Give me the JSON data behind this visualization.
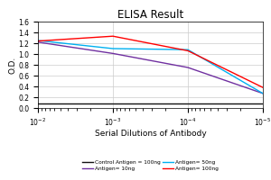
{
  "title": "ELISA Result",
  "xlabel": "Serial Dilutions of Antibody",
  "ylabel": "O.D.",
  "ylim": [
    0,
    1.6
  ],
  "yticks": [
    0,
    0.2,
    0.4,
    0.6,
    0.8,
    1.0,
    1.2,
    1.4,
    1.6
  ],
  "x_values": [
    0.01,
    0.001,
    0.0001,
    1e-05
  ],
  "lines": [
    {
      "label": "Control Antigen = 100ng",
      "color": "#111111",
      "y": [
        0.09,
        0.09,
        0.09,
        0.09
      ]
    },
    {
      "label": "Antigen= 10ng",
      "color": "#7030A0",
      "y": [
        1.22,
        1.01,
        0.75,
        0.27
      ]
    },
    {
      "label": "Antigen= 50ng",
      "color": "#00B0F0",
      "y": [
        1.25,
        1.1,
        1.08,
        0.27
      ]
    },
    {
      "label": "Antigen= 100ng",
      "color": "#FF0000",
      "y": [
        1.24,
        1.33,
        1.06,
        0.38
      ]
    }
  ],
  "legend_entries": [
    {
      "label": "Control Antigen = 100ng",
      "color": "#111111"
    },
    {
      "label": "Antigen= 10ng",
      "color": "#7030A0"
    },
    {
      "label": "Antigen= 50ng",
      "color": "#00B0F0"
    },
    {
      "label": "Antigen= 100ng",
      "color": "#FF0000"
    }
  ],
  "background_color": "#ffffff",
  "grid_color": "#cccccc"
}
